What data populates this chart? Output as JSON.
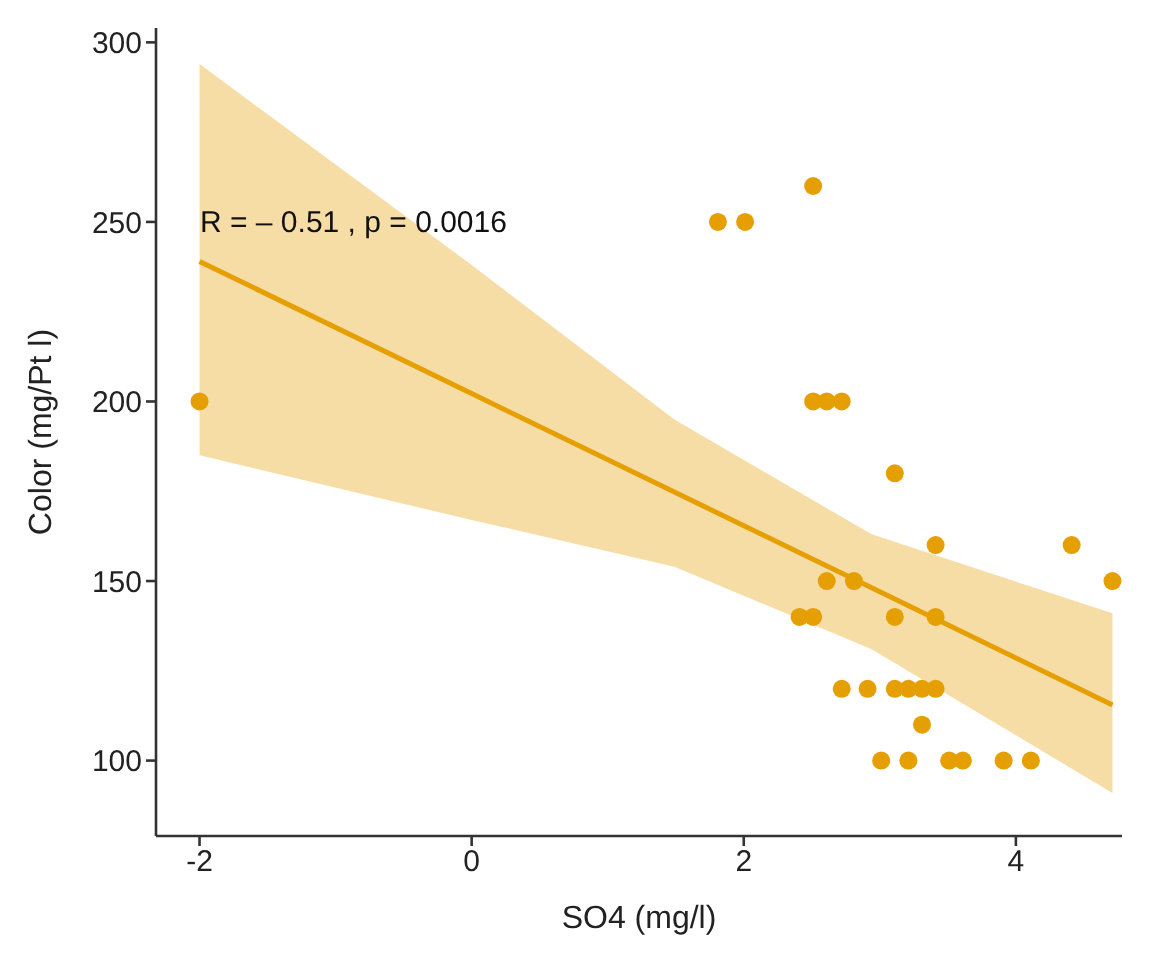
{
  "chart_data": {
    "type": "scatter",
    "xlabel": "SO4 (mg/l)",
    "ylabel": "Color (mg/Pt l)",
    "xlim": [
      -2.32,
      4.78
    ],
    "xticks": [
      -2,
      0,
      2,
      4
    ],
    "ylim": [
      79,
      304
    ],
    "yticks": [
      100,
      150,
      200,
      250,
      300
    ],
    "grid": false,
    "legend": false,
    "annotations": [
      "R = – 0.51 , p = 0.0016"
    ],
    "series": [
      {
        "marker": "circle",
        "color": "#e69f00",
        "x": [
          -2,
          1.81,
          2.01,
          2.51,
          2.51,
          2.61,
          2.72,
          3.11,
          3.41,
          4.41,
          2.61,
          2.81,
          4.71,
          2.41,
          2.51,
          3.11,
          3.41,
          2.72,
          2.91,
          3.11,
          3.21,
          3.31,
          3.41,
          3.31,
          3.01,
          3.21,
          3.51,
          3.61,
          3.91,
          4.11
        ],
        "values": [
          200,
          250,
          250,
          260,
          200,
          200,
          200,
          180,
          160,
          160,
          150,
          150,
          150,
          140,
          140,
          140,
          140,
          120,
          120,
          120,
          120,
          120,
          120,
          110,
          100,
          100,
          100,
          100,
          100,
          100
        ]
      },
      {
        "type": "line",
        "marker": "none",
        "color": "#e69f00",
        "x": [
          -2,
          0,
          1.49,
          2.94,
          4.71
        ],
        "values": [
          239,
          202.2,
          174.8,
          148.1,
          115.5
        ],
        "lower": [
          185,
          167,
          154,
          131,
          91
        ],
        "upper": [
          294,
          238,
          195,
          163,
          141
        ]
      }
    ]
  }
}
